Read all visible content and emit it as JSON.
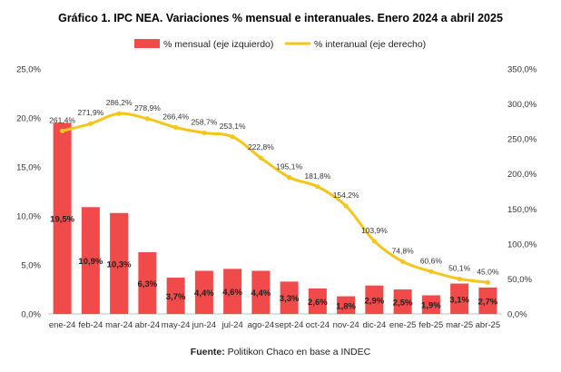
{
  "chart_data": {
    "type": "bar",
    "title": "Gráfico 1. IPC NEA. Variaciones % mensual e interanuales. Enero 2024 a abril 2025",
    "categories": [
      "ene-24",
      "feb-24",
      "mar-24",
      "abr-24",
      "may-24",
      "jun-24",
      "jul-24",
      "ago-24",
      "sept-24",
      "oct-24",
      "nov-24",
      "dic-24",
      "ene-25",
      "feb-25",
      "mar-25",
      "abr-25"
    ],
    "series": [
      {
        "name": "% mensual (eje izquierdo)",
        "type": "bar",
        "axis": "left",
        "color": "#f04a4a",
        "values": [
          19.5,
          10.9,
          10.3,
          6.3,
          3.7,
          4.4,
          4.6,
          4.4,
          3.3,
          2.6,
          1.8,
          2.9,
          2.5,
          1.9,
          3.1,
          2.7
        ],
        "labels": [
          "19,5%",
          "10,9%",
          "10,3%",
          "6,3%",
          "3,7%",
          "4,4%",
          "4,6%",
          "4,4%",
          "3,3%",
          "2,6%",
          "1,8%",
          "2,9%",
          "2,5%",
          "1,9%",
          "3,1%",
          "2,7%"
        ]
      },
      {
        "name": "% interanual (eje derecho)",
        "type": "line",
        "axis": "right",
        "color": "#f5c518",
        "values": [
          261.4,
          271.9,
          286.2,
          278.9,
          266.4,
          258.7,
          253.1,
          222.8,
          195.1,
          181.8,
          154.2,
          103.9,
          74.8,
          60.6,
          50.1,
          45.0
        ],
        "labels": [
          "261,4%",
          "271,9%",
          "286,2%",
          "278,9%",
          "266,4%",
          "258,7%",
          "253,1%",
          "222,8%",
          "195,1%",
          "181,8%",
          "154,2%",
          "103,9%",
          "74,8%",
          "60,6%",
          "50,1%",
          "45,0%"
        ]
      }
    ],
    "y_left": {
      "lim": [
        0,
        25
      ],
      "ticks": [
        "0,0%",
        "5,0%",
        "10,0%",
        "15,0%",
        "20,0%",
        "25,0%"
      ]
    },
    "y_right": {
      "lim": [
        0,
        350
      ],
      "ticks": [
        "0,0%",
        "50,0%",
        "100,0%",
        "150,0%",
        "200,0%",
        "250,0%",
        "300,0%",
        "350,0%"
      ]
    },
    "grid": false,
    "legend_position": "top",
    "source_label": "Fuente:",
    "source_text": " Politikon Chaco en base a INDEC"
  }
}
